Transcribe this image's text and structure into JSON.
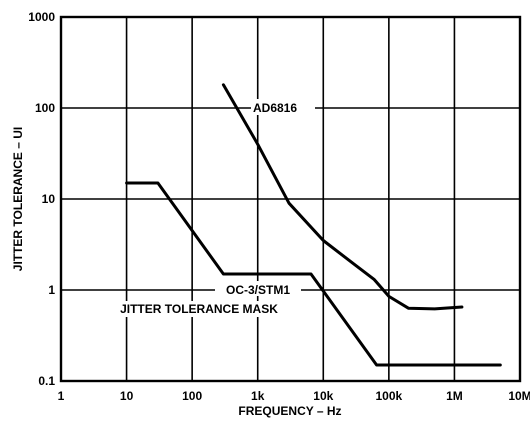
{
  "chart_data": {
    "type": "line",
    "xlabel": "FREQUENCY – Hz",
    "ylabel": "JITTER TOLERANCE – UI",
    "x_scale": "log",
    "y_scale": "log",
    "xlim": [
      1,
      10000000
    ],
    "ylim": [
      0.1,
      1000
    ],
    "grid": true,
    "x_ticks": [
      1,
      10,
      100,
      1000,
      10000,
      100000,
      1000000,
      10000000
    ],
    "x_tick_labels": [
      "1",
      "10",
      "100",
      "1k",
      "10k",
      "100k",
      "1M",
      "10M"
    ],
    "y_ticks": [
      0.1,
      1,
      10,
      100,
      1000
    ],
    "y_tick_labels": [
      "0.1",
      "1",
      "10",
      "100",
      "1000"
    ],
    "series": [
      {
        "name": "AD6816",
        "color": "#000000",
        "x": [
          300,
          1000,
          3000,
          10000,
          30000,
          60000,
          100000,
          200000,
          500000,
          1300000
        ],
        "y": [
          180,
          40,
          9,
          3.5,
          1.9,
          1.3,
          0.85,
          0.63,
          0.62,
          0.65
        ]
      },
      {
        "name": "OC-3/STM1 JITTER TOLERANCE MASK",
        "color": "#000000",
        "x": [
          10,
          30,
          300,
          6500,
          65000,
          5000000
        ],
        "y": [
          15,
          15,
          1.5,
          1.5,
          0.15,
          0.15
        ]
      }
    ],
    "annotations": [
      {
        "id": "ad6816",
        "text": "AD6816"
      },
      {
        "id": "mask_line1",
        "text": "OC-3/STM1"
      },
      {
        "id": "mask_line2",
        "text": "JITTER TOLERANCE MASK"
      }
    ]
  }
}
